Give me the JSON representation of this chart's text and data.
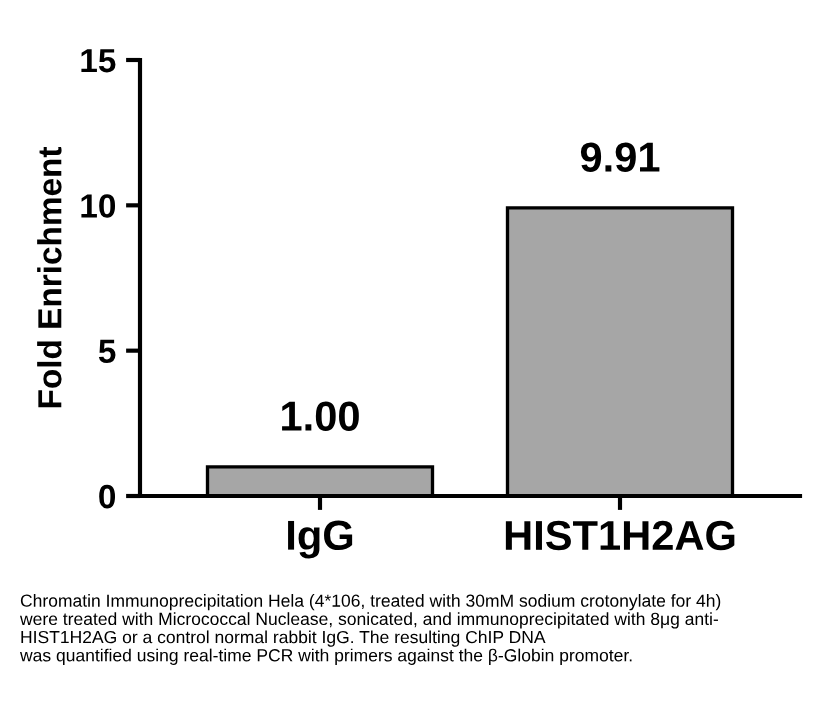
{
  "chart_data": {
    "type": "bar",
    "ylabel": "Fold Enrichment",
    "categories": [
      "IgG",
      "HIST1H2AG"
    ],
    "values": [
      1.0,
      9.91
    ],
    "value_labels": [
      "1.00",
      "9.91"
    ],
    "color": "#a6a6a6",
    "ylim": [
      0,
      15
    ],
    "yticks": [
      0,
      5,
      10,
      15
    ],
    "grid": false,
    "legend": false,
    "annotations": [
      "Chromatin Immunoprecipitation Hela (4*106, treated with 30mM sodium crotonylate for 4h)\nwere treated with Micrococcal Nuclease, sonicated, and immunoprecipitated with 8μg anti-\nHIST1H2AG or a control normal rabbit IgG. The resulting ChIP DNA\nwas quantified using real-time PCR with primers against the β-Globin promoter."
    ]
  }
}
